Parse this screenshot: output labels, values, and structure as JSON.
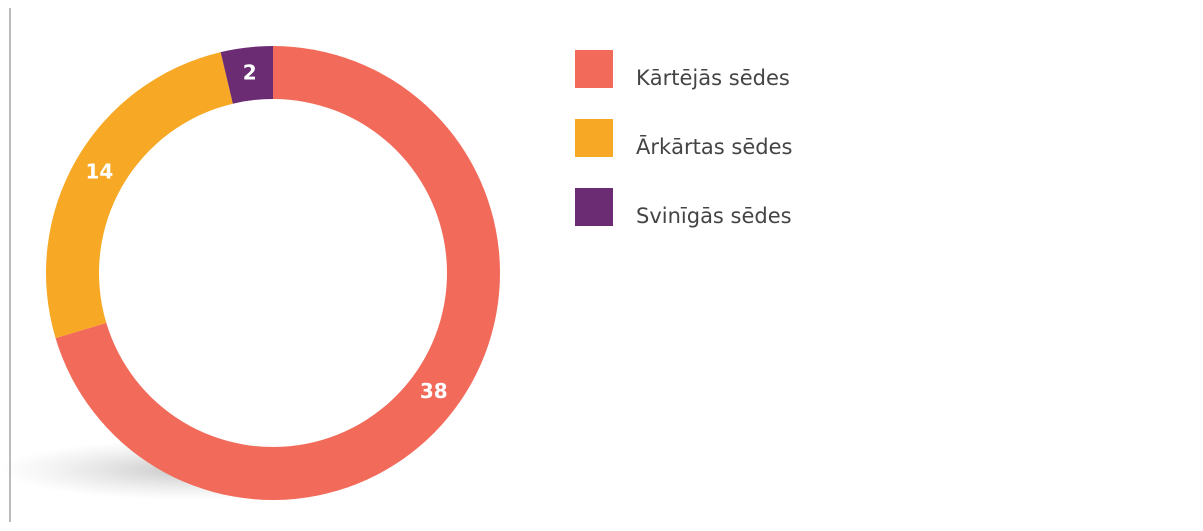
{
  "chart_data": {
    "type": "donut",
    "categories": [
      "Kārtējās sēdes",
      "Ārkārtas sēdes",
      "Svinīgās sēdes"
    ],
    "values": [
      38,
      14,
      2
    ],
    "colors": [
      "#f26b5a",
      "#f7a824",
      "#6b2c73"
    ],
    "legend": "right"
  }
}
